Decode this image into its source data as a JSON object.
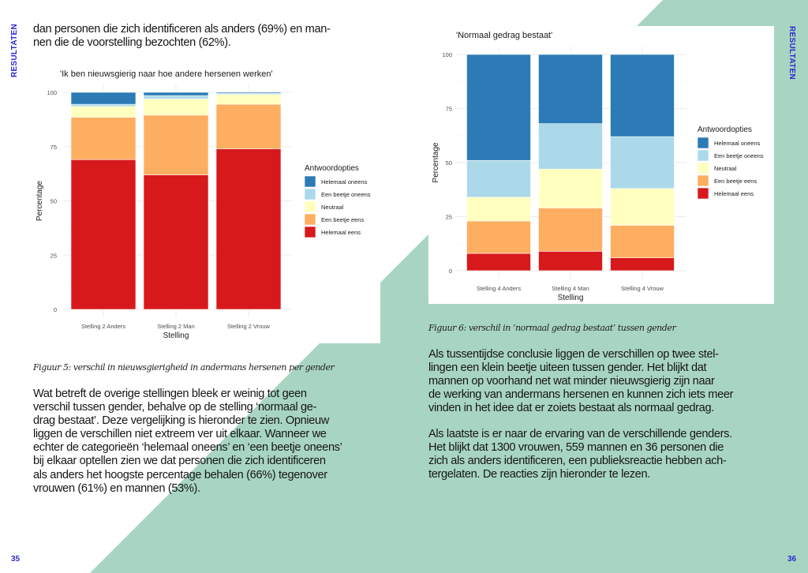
{
  "section_label": "RESULTATEN",
  "pages": {
    "left_number": "35",
    "right_number": "36"
  },
  "left": {
    "intro_lines": [
      "dan personen die zich identificeren als anders (69%) en man-",
      "nen die de voorstelling bezochten (62%)."
    ],
    "caption": "Figuur 5: verschil in nieuwsgierigheid in andermans hersenen per gender",
    "body_lines": [
      "Wat betreft de overige stellingen bleek er weinig tot geen",
      "verschil tussen gender, behalve op de stelling ‘normaal ge-",
      "drag bestaat’. Deze vergelijking is hieronder te zien. Opnieuw",
      "liggen de verschillen niet extreem ver uit elkaar. Wanneer we",
      "echter de categorieën ‘helemaal oneens’ en ‘een beetje oneens’",
      "bij elkaar optellen zien we dat personen die zich identificeren",
      "als anders het hoogste percentage behalen (66%) tegenover",
      "vrouwen (61%) en mannen (53%)."
    ]
  },
  "right": {
    "caption": "Figuur 6: verschil in ‘normaal gedrag bestaat’ tussen gender",
    "body1_lines": [
      "Als tussentijdse conclusie liggen de verschillen op twee stel-",
      "lingen een klein beetje uiteen tussen gender. Het blijkt dat",
      "mannen op voorhand net wat minder nieuwsgierig zijn naar",
      "de werking van andermans hersenen en kunnen zich iets meer",
      "vinden in het idee dat er zoiets bestaat als normaal gedrag."
    ],
    "body2_lines": [
      "Als laatste is er naar de ervaring van de verschillende genders.",
      "Het blijkt dat 1300 vrouwen, 559 mannen en 36 personen die",
      "zich als anders identificeren, een publieksreactie hebben ach-",
      "tergelaten. De reacties zijn hieronder te lezen."
    ]
  },
  "colors": {
    "accent": "#2a2ad0",
    "background_shape": "#a8d5c1"
  },
  "chart_data": [
    {
      "type": "bar",
      "stacked": true,
      "title": "'Ik ben nieuwsgierig naar hoe andere hersenen werken'",
      "xlabel": "Stelling",
      "ylabel": "Percentage",
      "ylim": [
        0,
        100
      ],
      "yticks": [
        "0",
        "25",
        "50",
        "75",
        "100"
      ],
      "categories": [
        "Stelling 2 Anders",
        "Stelling 2 Man",
        "Stelling 2 Vrouw"
      ],
      "legend_title": "Antwoordopties",
      "legend_position": "right",
      "series": [
        {
          "name": "Helemaal eens",
          "color": "#d7191c",
          "values": [
            69,
            62,
            74
          ]
        },
        {
          "name": "Een beetje eens",
          "color": "#fdae61",
          "values": [
            19.5,
            27.5,
            20.5
          ]
        },
        {
          "name": "Neutraal",
          "color": "#ffffbf",
          "values": [
            5,
            7.5,
            4.5
          ]
        },
        {
          "name": "Een beetje oneens",
          "color": "#abd9e9",
          "values": [
            1,
            1.5,
            0.5
          ]
        },
        {
          "name": "Helemaal oneens",
          "color": "#2c7bb6",
          "values": [
            5.5,
            1.5,
            0.5
          ]
        }
      ]
    },
    {
      "type": "bar",
      "stacked": true,
      "title": "'Normaal gedrag bestaat'",
      "xlabel": "Stelling",
      "ylabel": "Percentage",
      "ylim": [
        0,
        100
      ],
      "yticks": [
        "0",
        "25",
        "50",
        "75",
        "100"
      ],
      "categories": [
        "Stelling 4 Anders",
        "Stelling 4 Man",
        "Stelling 4 Vrouw"
      ],
      "legend_title": "Antwoordopties",
      "legend_position": "right",
      "series": [
        {
          "name": "Helemaal eens",
          "color": "#d7191c",
          "values": [
            8,
            9,
            6
          ]
        },
        {
          "name": "Een beetje eens",
          "color": "#fdae61",
          "values": [
            15,
            20,
            15
          ]
        },
        {
          "name": "Neutraal",
          "color": "#ffffbf",
          "values": [
            11,
            18,
            17
          ]
        },
        {
          "name": "Een beetje oneens",
          "color": "#abd9e9",
          "values": [
            17,
            21,
            24
          ]
        },
        {
          "name": "Helemaal oneens",
          "color": "#2c7bb6",
          "values": [
            49,
            32,
            38
          ]
        }
      ]
    }
  ]
}
